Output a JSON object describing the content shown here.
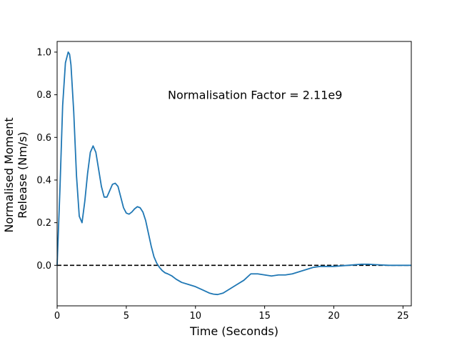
{
  "chart_data": {
    "type": "line",
    "title": "",
    "xlabel": "Time (Seconds)",
    "ylabel_lines": [
      "Normalised Moment",
      "Release (Nm/s)"
    ],
    "xlim": [
      0,
      25.6
    ],
    "ylim": [
      -0.19,
      1.05
    ],
    "x_ticks": [
      0,
      5,
      10,
      15,
      20,
      25
    ],
    "x_tick_labels": [
      "0",
      "5",
      "10",
      "15",
      "20",
      "25"
    ],
    "y_ticks": [
      0.0,
      0.2,
      0.4,
      0.6,
      0.8,
      1.0
    ],
    "y_tick_labels": [
      "0.0",
      "0.2",
      "0.4",
      "0.6",
      "0.8",
      "1.0"
    ],
    "grid": false,
    "legend": "none",
    "annotation": {
      "text": "Normalisation Factor = 2.11e9",
      "x": 8.0,
      "y": 0.8
    },
    "reference_line": {
      "y": 0.0,
      "style": "dashed",
      "color": "#000000"
    },
    "series": [
      {
        "color": "#1f77b4",
        "x": [
          0,
          0.2,
          0.4,
          0.6,
          0.8,
          0.9,
          1.0,
          1.2,
          1.4,
          1.6,
          1.8,
          2.0,
          2.2,
          2.4,
          2.6,
          2.8,
          3.0,
          3.2,
          3.4,
          3.6,
          3.8,
          4.0,
          4.2,
          4.4,
          4.6,
          4.8,
          5.0,
          5.2,
          5.4,
          5.6,
          5.8,
          6.0,
          6.2,
          6.4,
          6.6,
          6.8,
          7.0,
          7.2,
          7.4,
          7.6,
          7.8,
          8.0,
          8.3,
          8.6,
          9.0,
          9.5,
          10.0,
          10.5,
          11.0,
          11.3,
          11.6,
          12.0,
          12.5,
          13.0,
          13.5,
          14.0,
          14.5,
          15.0,
          15.5,
          16.0,
          16.5,
          17.0,
          17.5,
          18.0,
          18.5,
          19.0,
          19.5,
          20.0,
          21.0,
          22.0,
          22.5,
          23.0,
          24.0,
          25.0,
          25.6
        ],
        "y": [
          0.0,
          0.35,
          0.75,
          0.95,
          1.0,
          0.99,
          0.94,
          0.72,
          0.42,
          0.23,
          0.2,
          0.3,
          0.43,
          0.53,
          0.56,
          0.53,
          0.45,
          0.37,
          0.32,
          0.32,
          0.35,
          0.38,
          0.385,
          0.37,
          0.32,
          0.27,
          0.245,
          0.24,
          0.25,
          0.265,
          0.275,
          0.27,
          0.25,
          0.21,
          0.15,
          0.09,
          0.04,
          0.01,
          -0.01,
          -0.025,
          -0.035,
          -0.04,
          -0.05,
          -0.065,
          -0.08,
          -0.09,
          -0.1,
          -0.115,
          -0.13,
          -0.135,
          -0.137,
          -0.13,
          -0.11,
          -0.09,
          -0.07,
          -0.04,
          -0.04,
          -0.045,
          -0.05,
          -0.045,
          -0.045,
          -0.04,
          -0.03,
          -0.02,
          -0.01,
          -0.005,
          -0.005,
          -0.005,
          0.0,
          0.005,
          0.005,
          0.003,
          0.0,
          0.0,
          0.0
        ]
      }
    ]
  }
}
